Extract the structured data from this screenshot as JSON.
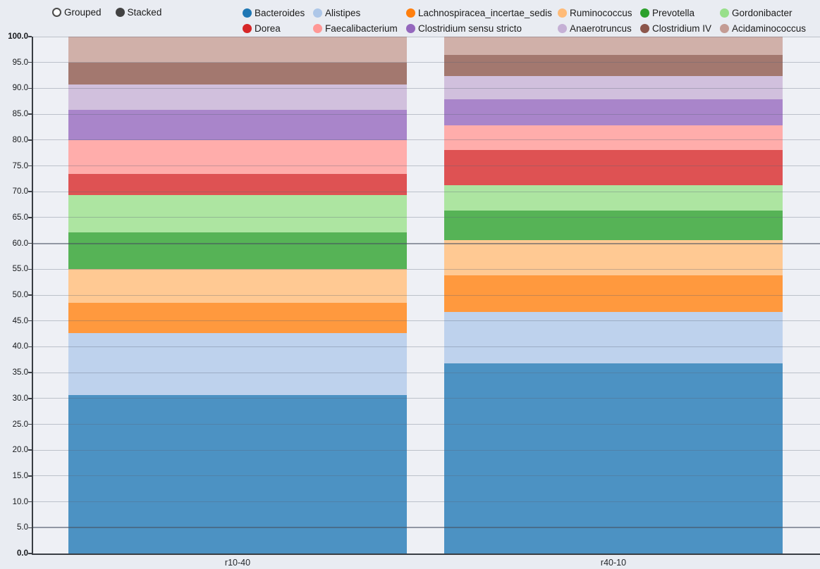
{
  "controls": {
    "grouped_label": "Grouped",
    "stacked_label": "Stacked",
    "selected_mode": "Stacked"
  },
  "chart_data": {
    "type": "bar",
    "mode": "stacked",
    "title": "",
    "xlabel": "",
    "ylabel": "",
    "categories": [
      "r10-40",
      "r40-10"
    ],
    "series": [
      {
        "name": "Bacteroides",
        "color": "#1f77b4",
        "values": [
          30.7,
          36.8
        ]
      },
      {
        "name": "Alistipes",
        "color": "#aec7e8",
        "values": [
          12.0,
          9.9
        ]
      },
      {
        "name": "Lachnospiracea_incertae_sedis",
        "color": "#ff7f0e",
        "values": [
          5.8,
          7.1
        ]
      },
      {
        "name": "Ruminococcus",
        "color": "#ffbb78",
        "values": [
          6.5,
          6.8
        ]
      },
      {
        "name": "Prevotella",
        "color": "#2ca02c",
        "values": [
          7.1,
          5.7
        ]
      },
      {
        "name": "Gordonibacter",
        "color": "#98df8a",
        "values": [
          7.3,
          5.0
        ]
      },
      {
        "name": "Dorea",
        "color": "#d62728",
        "values": [
          4.1,
          6.8
        ]
      },
      {
        "name": "Faecalibacterium",
        "color": "#ff9896",
        "values": [
          6.5,
          4.8
        ]
      },
      {
        "name": "Clostridium sensu stricto",
        "color": "#9467bd",
        "values": [
          5.8,
          5.0
        ]
      },
      {
        "name": "Anaerotruncus",
        "color": "#c5b0d5",
        "values": [
          4.9,
          4.5
        ]
      },
      {
        "name": "Clostridium IV",
        "color": "#8c564b",
        "values": [
          4.3,
          4.1
        ]
      },
      {
        "name": "Acidaminococcus",
        "color": "#c49c94",
        "values": [
          5.0,
          3.5
        ]
      }
    ],
    "ylim": [
      0,
      100
    ],
    "ytick_labels": [
      "0.0",
      "5.0",
      "10.0",
      "15.0",
      "20.0",
      "25.0",
      "30.0",
      "35.0",
      "40.0",
      "45.0",
      "50.0",
      "55.0",
      "60.0",
      "65.0",
      "70.0",
      "75.0",
      "80.0",
      "85.0",
      "90.0",
      "95.0",
      "100.0"
    ],
    "bold_tick_labels": [
      "0.0",
      "100.0"
    ],
    "emphasized_gridlines": [
      "5.0",
      "60.0"
    ],
    "grid": true,
    "legend_position": "top",
    "bar_alpha": 0.8
  }
}
